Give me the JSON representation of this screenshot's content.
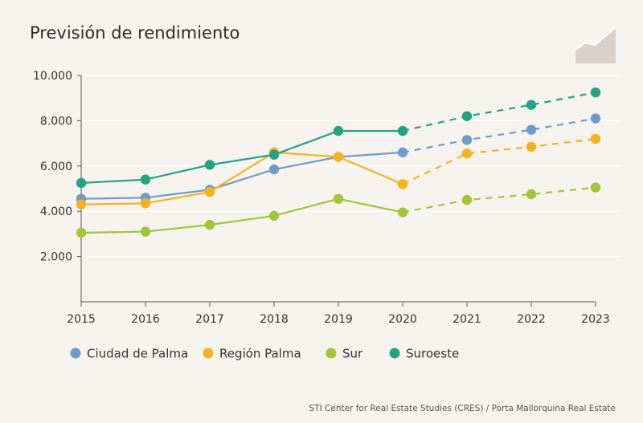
{
  "chart_data": {
    "type": "line",
    "title": "Previsión de rendimiento",
    "xlabel": "",
    "ylabel": "",
    "categories": [
      "2015",
      "2016",
      "2017",
      "2018",
      "2019",
      "2020",
      "2021",
      "2022",
      "2023"
    ],
    "ylim": [
      0,
      10000
    ],
    "yticks": [
      {
        "value": 2000,
        "label": "2.000"
      },
      {
        "value": 4000,
        "label": "4.000"
      },
      {
        "value": 6000,
        "label": "6.000"
      },
      {
        "value": 8000,
        "label": "8.000"
      },
      {
        "value": 10000,
        "label": "10.000"
      }
    ],
    "grid": true,
    "legend_position": "bottom",
    "forecast_from": "2020",
    "series": [
      {
        "name": "Ciudad de Palma",
        "color": "#6f9cc6",
        "values": [
          4550,
          4600,
          4950,
          5850,
          6400,
          6600,
          7150,
          7600,
          8100
        ]
      },
      {
        "name": "Región Palma",
        "color": "#f2b31f",
        "values": [
          4300,
          4350,
          4850,
          6600,
          6400,
          5200,
          6550,
          6850,
          7200
        ]
      },
      {
        "name": "Sur",
        "color": "#a3c43b",
        "values": [
          3050,
          3100,
          3400,
          3800,
          4550,
          3950,
          4500,
          4750,
          5050
        ]
      },
      {
        "name": "Suroeste",
        "color": "#22a483",
        "values": [
          5250,
          5400,
          6050,
          6500,
          7550,
          7550,
          8200,
          8700,
          9250
        ]
      }
    ]
  },
  "source_text": "STI Center for Real Estate Studies (CRES) / Porta Mallorquina Real Estate",
  "logo_icon": "rising-chart-icon"
}
